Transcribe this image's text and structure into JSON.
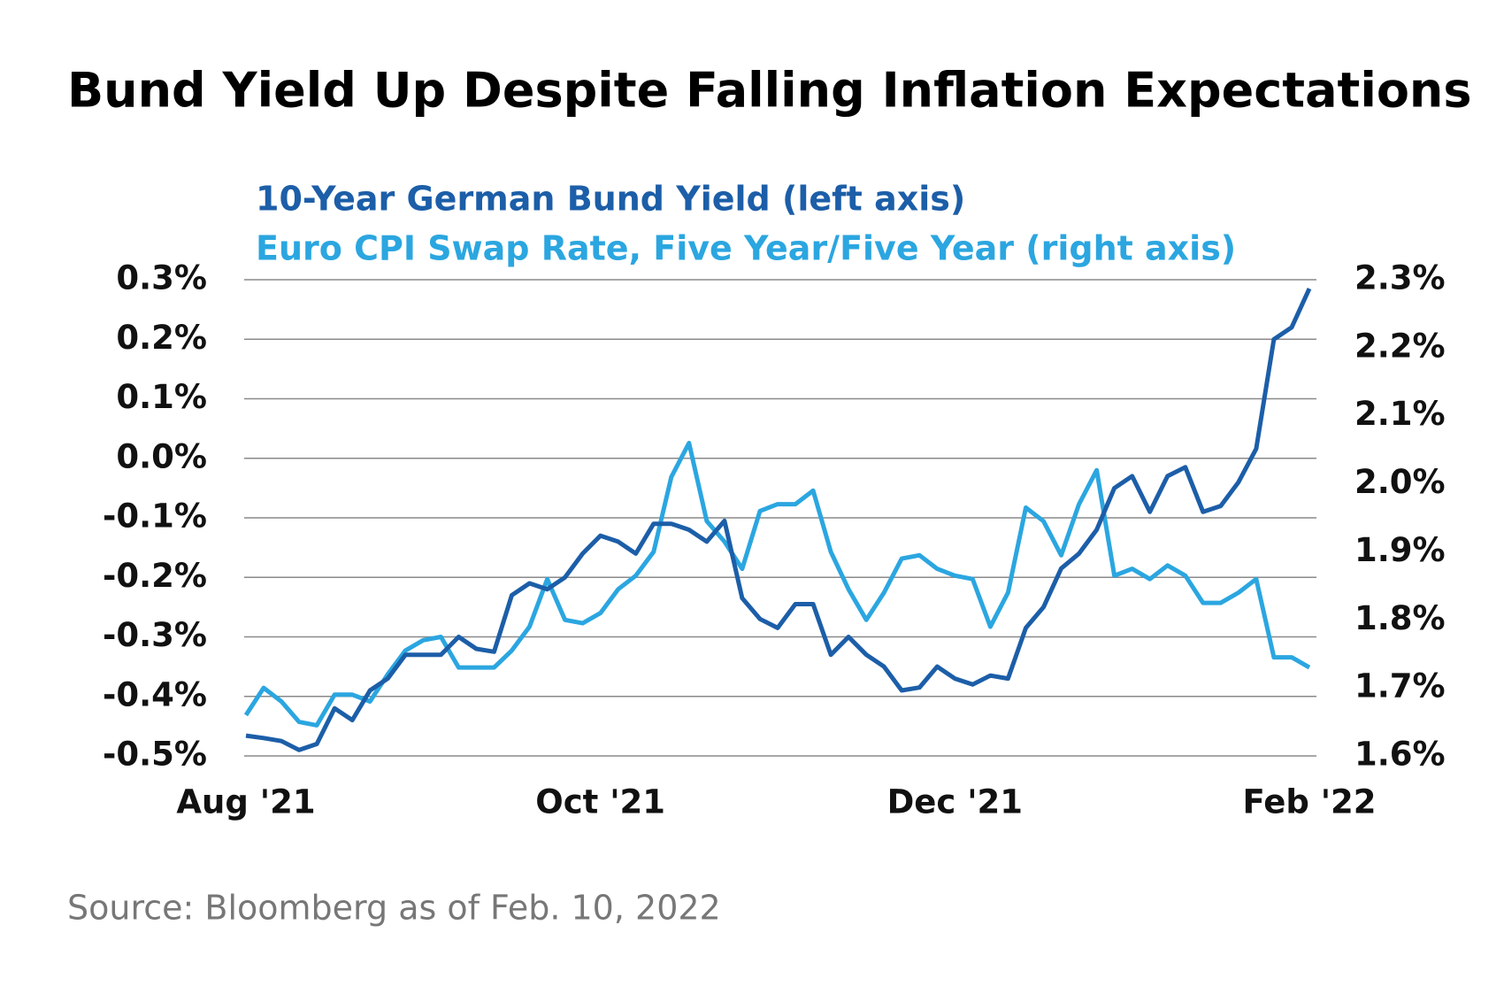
{
  "chart_data": {
    "type": "line",
    "title": "Bund Yield Up Despite Falling Inflation Expectations",
    "source": "Source: Bloomberg as of Feb. 10, 2022",
    "categories": [
      "Aug '21",
      null,
      null,
      null,
      null,
      null,
      null,
      null,
      null,
      null,
      null,
      null,
      null,
      null,
      null,
      null,
      null,
      null,
      null,
      null,
      "Oct '21",
      null,
      null,
      null,
      null,
      null,
      null,
      null,
      null,
      null,
      null,
      null,
      null,
      null,
      null,
      null,
      null,
      null,
      null,
      null,
      "Dec '21",
      null,
      null,
      null,
      null,
      null,
      null,
      null,
      null,
      null,
      null,
      null,
      null,
      null,
      null,
      null,
      null,
      null,
      null,
      null,
      "Feb '22"
    ],
    "series": [
      {
        "name": "10-Year German Bund Yield (left axis)",
        "color": "#1c5ea8",
        "axis": "y",
        "values": [
          -0.466,
          -0.47,
          -0.475,
          -0.49,
          -0.48,
          -0.42,
          -0.44,
          -0.39,
          -0.37,
          -0.33,
          -0.33,
          -0.33,
          -0.3,
          -0.32,
          -0.325,
          -0.23,
          -0.21,
          -0.22,
          -0.2,
          -0.16,
          -0.13,
          -0.14,
          -0.16,
          -0.11,
          -0.11,
          -0.12,
          -0.14,
          -0.105,
          -0.235,
          -0.27,
          -0.285,
          -0.245,
          -0.245,
          -0.33,
          -0.3,
          -0.33,
          -0.35,
          -0.39,
          -0.385,
          -0.35,
          -0.37,
          -0.38,
          -0.365,
          -0.37,
          -0.285,
          -0.25,
          -0.185,
          -0.16,
          -0.12,
          -0.05,
          -0.03,
          -0.09,
          -0.03,
          -0.015,
          -0.09,
          -0.08,
          -0.04,
          0.016,
          0.2,
          0.22,
          0.285
        ]
      },
      {
        "name": "Euro CPI Swap Rate, Five Year/Five Year (right axis)",
        "color": "#2ba6e0",
        "axis": "y2",
        "values": [
          1.66,
          1.7,
          1.68,
          1.65,
          1.645,
          1.69,
          1.69,
          1.68,
          1.72,
          1.755,
          1.77,
          1.775,
          1.73,
          1.73,
          1.73,
          1.755,
          1.79,
          1.86,
          1.8,
          1.795,
          1.81,
          1.845,
          1.865,
          1.9,
          2.01,
          2.06,
          1.945,
          1.915,
          1.875,
          1.96,
          1.97,
          1.97,
          1.99,
          1.9,
          1.845,
          1.8,
          1.84,
          1.89,
          1.895,
          1.875,
          1.865,
          1.86,
          1.79,
          1.84,
          1.965,
          1.945,
          1.895,
          1.97,
          2.02,
          1.865,
          1.875,
          1.86,
          1.88,
          1.865,
          1.825,
          1.825,
          1.84,
          1.86,
          1.745,
          1.745,
          1.73
        ]
      }
    ],
    "ylim": [
      -0.5,
      0.3
    ],
    "yticks": [
      {
        "value": 0.3,
        "label": "0.3%"
      },
      {
        "value": 0.2,
        "label": "0.2%"
      },
      {
        "value": 0.1,
        "label": "0.1%"
      },
      {
        "value": 0.0,
        "label": "0.0%"
      },
      {
        "value": -0.1,
        "label": "-0.1%"
      },
      {
        "value": -0.2,
        "label": "-0.2%"
      },
      {
        "value": -0.3,
        "label": "-0.3%"
      },
      {
        "value": -0.4,
        "label": "-0.4%"
      },
      {
        "value": -0.5,
        "label": "-0.5%"
      }
    ],
    "y2lim": [
      1.6,
      2.3
    ],
    "y2ticks": [
      {
        "value": 2.3,
        "label": "2.3%"
      },
      {
        "value": 2.2,
        "label": "2.2%"
      },
      {
        "value": 2.1,
        "label": "2.1%"
      },
      {
        "value": 2.0,
        "label": "2.0%"
      },
      {
        "value": 1.9,
        "label": "1.9%"
      },
      {
        "value": 1.8,
        "label": "1.8%"
      },
      {
        "value": 1.7,
        "label": "1.7%"
      },
      {
        "value": 1.6,
        "label": "1.6%"
      }
    ],
    "grid": true
  }
}
